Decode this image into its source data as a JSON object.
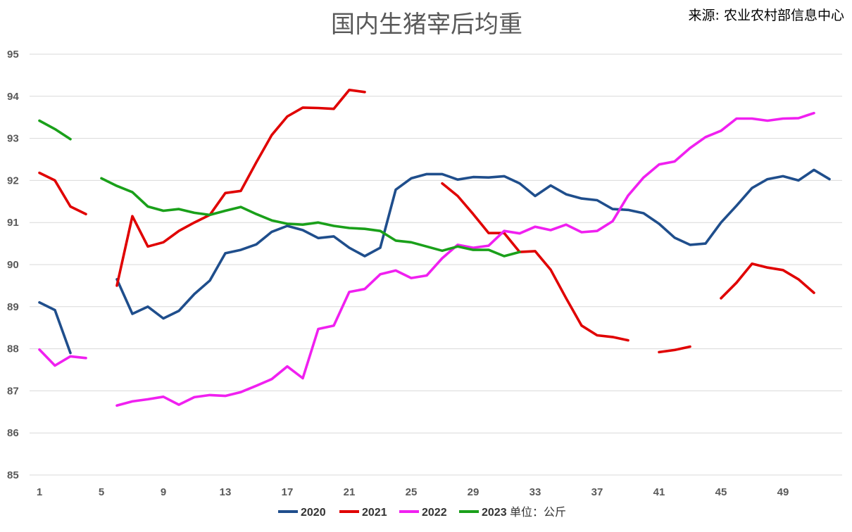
{
  "chart_data": {
    "type": "line",
    "title": "国内生猪宰后均重",
    "source": "来源: 农业农村部信息中心",
    "unit": "单位：公斤",
    "xlabel": "",
    "ylabel": "",
    "x_ticks": [
      "1",
      "5",
      "9",
      "13",
      "17",
      "21",
      "25",
      "29",
      "33",
      "37",
      "41",
      "45",
      "49"
    ],
    "y_ticks": [
      "85",
      "86",
      "87",
      "88",
      "89",
      "90",
      "91",
      "92",
      "93",
      "94",
      "95"
    ],
    "xlim": [
      1,
      53
    ],
    "ylim": [
      85,
      95
    ],
    "grid": true,
    "legend_position": "bottom",
    "series": [
      {
        "name": "2020",
        "color": "#1f4e8c",
        "x": [
          1,
          2,
          3,
          null,
          6,
          7,
          8,
          9,
          10,
          11,
          12,
          13,
          14,
          15,
          16,
          17,
          18,
          19,
          20,
          21,
          22,
          23,
          24,
          25,
          26,
          27,
          28,
          29,
          30,
          31,
          32,
          33,
          34,
          35,
          36,
          37,
          38,
          39,
          40,
          41,
          42,
          43,
          44,
          45,
          46,
          47,
          48,
          49,
          50,
          51,
          52
        ],
        "values": [
          89.1,
          88.92,
          87.9,
          null,
          89.65,
          88.83,
          89.0,
          88.72,
          88.9,
          89.3,
          89.62,
          90.27,
          90.35,
          90.48,
          90.78,
          90.92,
          90.82,
          90.63,
          90.67,
          90.4,
          90.2,
          90.4,
          91.78,
          92.05,
          92.15,
          92.15,
          92.02,
          92.08,
          92.07,
          92.1,
          91.93,
          91.63,
          91.88,
          91.67,
          91.57,
          91.53,
          91.32,
          91.3,
          91.22,
          90.97,
          90.64,
          90.47,
          90.5,
          91.0,
          91.4,
          91.82,
          92.03,
          92.1,
          92.0,
          92.25,
          92.03
        ]
      },
      {
        "name": "2021",
        "color": "#e00000",
        "x": [
          1,
          2,
          3,
          4,
          null,
          6,
          7,
          8,
          9,
          10,
          11,
          12,
          13,
          14,
          15,
          16,
          17,
          18,
          19,
          20,
          21,
          22,
          null,
          27,
          28,
          29,
          30,
          31,
          32,
          33,
          34,
          35,
          36,
          37,
          38,
          39,
          null,
          41,
          42,
          43,
          null,
          45,
          46,
          47,
          48,
          49,
          50,
          51
        ],
        "values": [
          92.18,
          92.0,
          91.38,
          91.2,
          null,
          89.5,
          91.15,
          90.43,
          90.53,
          90.8,
          91.0,
          91.18,
          91.7,
          91.75,
          92.43,
          93.08,
          93.52,
          93.73,
          93.72,
          93.7,
          94.15,
          94.1,
          null,
          91.93,
          91.63,
          91.2,
          90.75,
          90.75,
          90.3,
          90.32,
          89.88,
          89.2,
          88.55,
          88.32,
          88.28,
          88.2,
          null,
          87.92,
          87.97,
          88.05,
          null,
          89.2,
          89.57,
          90.02,
          89.93,
          89.87,
          89.65,
          89.33
        ]
      },
      {
        "name": "2022",
        "color": "#f020f0",
        "x": [
          1,
          2,
          3,
          4,
          null,
          6,
          7,
          8,
          9,
          10,
          11,
          12,
          13,
          14,
          15,
          16,
          17,
          18,
          19,
          20,
          21,
          22,
          23,
          24,
          25,
          26,
          27,
          28,
          29,
          30,
          31,
          32,
          33,
          34,
          35,
          36,
          37,
          38,
          39,
          40,
          41,
          42,
          43,
          44,
          45,
          46,
          47,
          48,
          49,
          50,
          51
        ],
        "values": [
          87.98,
          87.6,
          87.82,
          87.78,
          null,
          86.65,
          86.75,
          86.8,
          86.86,
          86.67,
          86.85,
          86.9,
          86.88,
          86.97,
          87.12,
          87.28,
          87.58,
          87.3,
          88.47,
          88.55,
          89.35,
          89.42,
          89.77,
          89.86,
          89.68,
          89.74,
          90.15,
          90.47,
          90.4,
          90.45,
          90.8,
          90.74,
          90.9,
          90.82,
          90.95,
          90.77,
          90.8,
          91.03,
          91.64,
          92.07,
          92.38,
          92.45,
          92.77,
          93.03,
          93.18,
          93.47,
          93.47,
          93.42,
          93.47,
          93.48,
          93.6
        ]
      },
      {
        "name": "2023",
        "color": "#1aa01a",
        "x": [
          1,
          2,
          3,
          null,
          5,
          6,
          7,
          8,
          9,
          10,
          11,
          12,
          13,
          14,
          15,
          16,
          17,
          18,
          19,
          20,
          21,
          22,
          23,
          24,
          25,
          26,
          27,
          28,
          29,
          30,
          31,
          32
        ],
        "values": [
          93.42,
          93.22,
          92.98,
          null,
          92.05,
          91.87,
          91.72,
          91.38,
          91.28,
          91.32,
          91.23,
          91.18,
          91.28,
          91.37,
          91.2,
          91.05,
          90.97,
          90.95,
          91.0,
          90.92,
          90.87,
          90.85,
          90.8,
          90.57,
          90.53,
          90.43,
          90.33,
          90.43,
          90.35,
          90.35,
          90.2,
          90.3
        ]
      }
    ]
  }
}
